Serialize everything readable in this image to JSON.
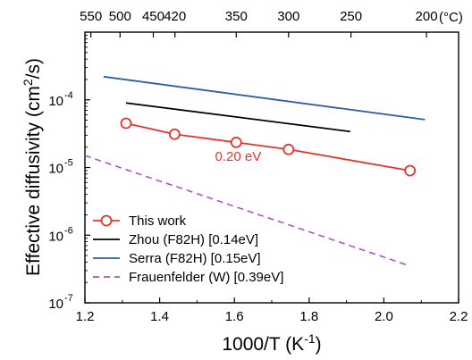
{
  "chart_data": {
    "type": "line",
    "xlabel": "1000/T (K",
    "xlabel_sup": "-1",
    "xlabel_suffix": ")",
    "ylabel": "Effective diffusivity (cm",
    "ylabel_sup": "2",
    "ylabel_suffix": "/s)",
    "xlim": [
      1.2,
      2.2
    ],
    "ylim": [
      1e-07,
      0.001
    ],
    "yscale": "log",
    "x_ticks": [
      {
        "value": 1.2,
        "label": "1.2"
      },
      {
        "value": 1.4,
        "label": "1.4"
      },
      {
        "value": 1.6,
        "label": "1.6"
      },
      {
        "value": 1.8,
        "label": "1.8"
      },
      {
        "value": 2.0,
        "label": "2.0"
      },
      {
        "value": 2.2,
        "label": "2.2"
      }
    ],
    "y_ticks": [
      {
        "value": 1e-07,
        "base": "10",
        "exp": "-7"
      },
      {
        "value": 1e-06,
        "base": "10",
        "exp": "-6"
      },
      {
        "value": 1e-05,
        "base": "10",
        "exp": "-5"
      },
      {
        "value": 0.0001,
        "base": "10",
        "exp": "-4"
      }
    ],
    "top_axis": {
      "unit_label": "(°C)",
      "ticks": [
        {
          "x": 1.216,
          "label": "550"
        },
        {
          "x": 1.294,
          "label": "500"
        },
        {
          "x": 1.383,
          "label": "450"
        },
        {
          "x": 1.441,
          "label": "420"
        },
        {
          "x": 1.605,
          "label": "350"
        },
        {
          "x": 1.745,
          "label": "300"
        },
        {
          "x": 1.912,
          "label": "250"
        },
        {
          "x": 2.114,
          "label": "200"
        }
      ]
    },
    "series": [
      {
        "name": "This work",
        "color": "#e8322a",
        "style": "solid-markers",
        "x": [
          1.31,
          1.44,
          1.605,
          1.745,
          2.07
        ],
        "y": [
          4.5e-05,
          3.1e-05,
          2.35e-05,
          1.85e-05,
          9e-06
        ]
      },
      {
        "name": "Zhou (F82H) [0.14eV]",
        "color": "#000000",
        "style": "solid",
        "x": [
          1.31,
          1.91
        ],
        "y": [
          9e-05,
          3.4e-05
        ]
      },
      {
        "name": "Serra (F82H) [0.15eV]",
        "color": "#2f5cad",
        "style": "solid",
        "x": [
          1.25,
          2.11
        ],
        "y": [
          0.00022,
          5.1e-05
        ]
      },
      {
        "name": "Frauenfelder (W) [0.39eV]",
        "color": "#a855c8",
        "style": "dashed",
        "x": [
          1.2,
          2.07
        ],
        "y": [
          1.5e-05,
          3.5e-07
        ]
      }
    ],
    "annotations": [
      {
        "text": "0.20 eV",
        "x": 1.61,
        "y": 1.25e-05,
        "color": "#e8322a"
      }
    ],
    "legend_placement": "bottom-left",
    "grid": false
  }
}
